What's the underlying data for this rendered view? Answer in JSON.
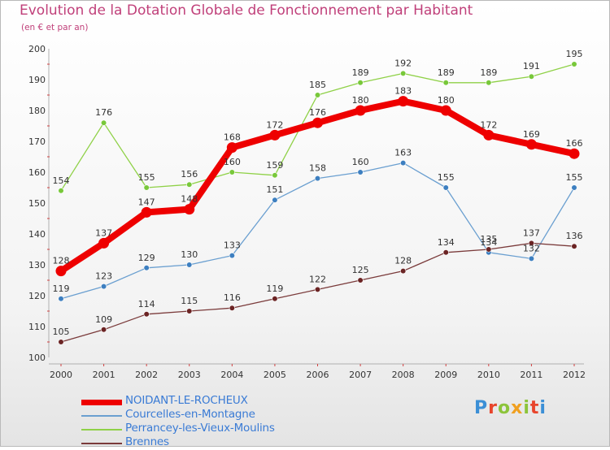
{
  "title": "Evolution de la Dotation Globale de Fonctionnement par Habitant",
  "subtitle": "(en € et par an)",
  "logo": "Proxiti",
  "chart_data": {
    "type": "line",
    "title": "Evolution de la Dotation Globale de Fonctionnement par Habitant",
    "subtitle": "(en € et par an)",
    "xlabel": "",
    "ylabel": "",
    "ylim": [
      100,
      200
    ],
    "yticks": [
      100,
      110,
      120,
      130,
      140,
      150,
      160,
      170,
      180,
      190,
      200
    ],
    "ytick_labels": [
      "100",
      "110",
      "120",
      "130",
      "140",
      "150",
      "160",
      "170",
      "180",
      "190",
      "200"
    ],
    "grid": false,
    "legend_position": "bottom-left",
    "categories": [
      "2000",
      "2001",
      "2002",
      "2003",
      "2004",
      "2005",
      "2006",
      "2007",
      "2008",
      "2009",
      "2010",
      "2011",
      "2012"
    ],
    "series": [
      {
        "name": "Perrancey-les-Vieux-Moulins",
        "color": "#8fd147",
        "marker": "#78c83a",
        "values": [
          154,
          176,
          155,
          156,
          160,
          159,
          185,
          189,
          192,
          189,
          189,
          191,
          195
        ],
        "labels": [
          "154",
          "176",
          "155",
          "156",
          "160",
          "159",
          "185",
          "189",
          "192",
          "189",
          "189",
          "191",
          "195"
        ]
      },
      {
        "name": "Courcelles-en-Montagne",
        "color": "#6a9fd0",
        "marker": "#3d7fc0",
        "values": [
          119,
          123,
          129,
          130,
          133,
          151,
          158,
          160,
          163,
          155,
          134,
          132,
          155
        ],
        "labels": [
          "119",
          "123",
          "129",
          "130",
          "133",
          "151",
          "158",
          "160",
          "163",
          "155",
          "134",
          "132",
          "155"
        ]
      },
      {
        "name": "Brennes",
        "color": "#7a3a3a",
        "marker": "#6b2424",
        "values": [
          105,
          109,
          114,
          115,
          116,
          119,
          122,
          125,
          128,
          134,
          135,
          137,
          136
        ],
        "labels": [
          "105",
          "109",
          "114",
          "115",
          "116",
          "119",
          "122",
          "125",
          "128",
          "134",
          "135",
          "137",
          "136"
        ]
      },
      {
        "name": "NOIDANT-LE-ROCHEUX",
        "color": "#ee0000",
        "marker": "#ee0000",
        "values": [
          128,
          137,
          147,
          148,
          168,
          172,
          176,
          180,
          183,
          180,
          172,
          169,
          166
        ],
        "labels": [
          "128",
          "137",
          "147",
          "148",
          "168",
          "172",
          "176",
          "180",
          "183",
          "180",
          "172",
          "169",
          "166"
        ]
      }
    ],
    "legend": [
      {
        "name": "NOIDANT-LE-ROCHEUX",
        "color": "#ee0000",
        "text_color": "#3a7bd5"
      },
      {
        "name": "Courcelles-en-Montagne",
        "color": "#6a9fd0",
        "text_color": "#3a7bd5"
      },
      {
        "name": "Perrancey-les-Vieux-Moulins",
        "color": "#8fd147",
        "text_color": "#3a7bd5"
      },
      {
        "name": "Brennes",
        "color": "#7a3a3a",
        "text_color": "#3a7bd5"
      }
    ]
  }
}
